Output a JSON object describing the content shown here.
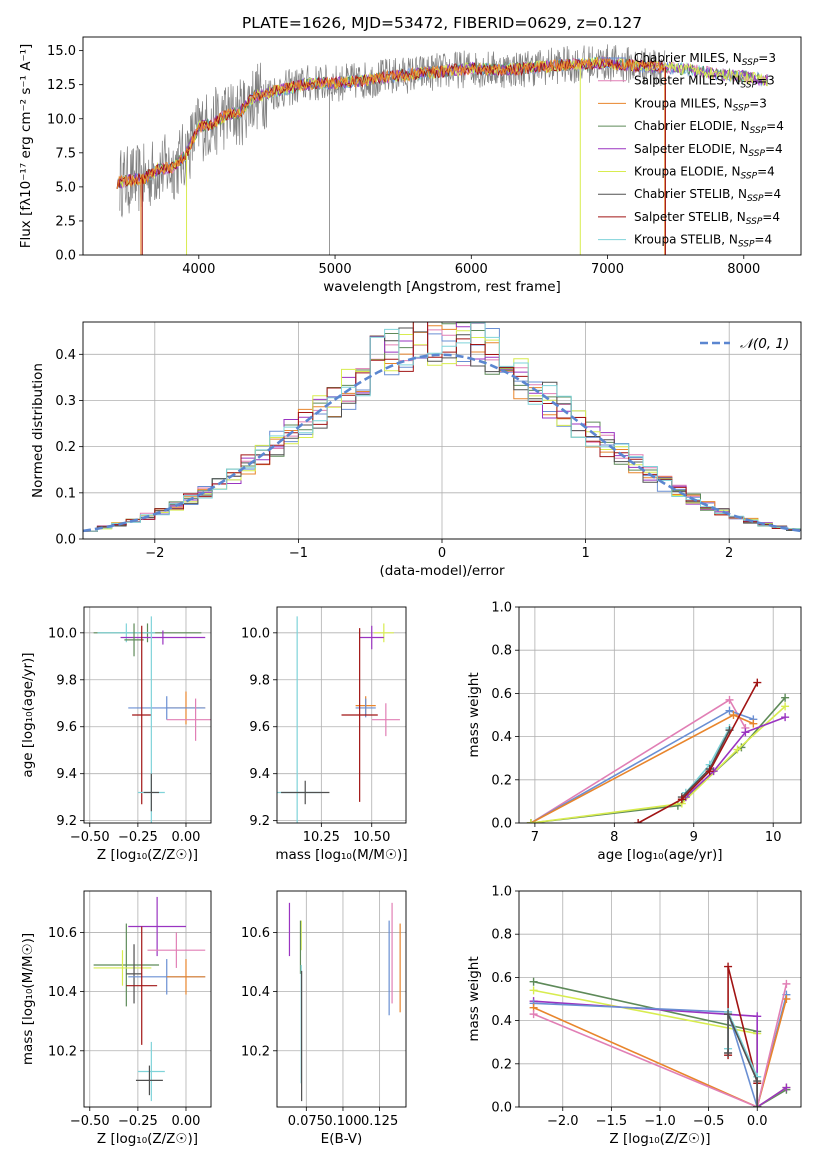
{
  "title": "PLATE=1626, MJD=53472, FIBERID=0629, z=0.127",
  "colors": {
    "chabrier_miles": "#6a8fd3",
    "salpeter_miles": "#e17fb5",
    "kroupa_miles": "#e8852c",
    "chabrier_elodie": "#5e8a59",
    "salpeter_elodie": "#9a34c1",
    "kroupa_elodie": "#d8ec4f",
    "chabrier_stelib": "#505050",
    "salpeter_stelib": "#a11414",
    "kroupa_stelib": "#7fd3d9"
  },
  "chart_data": [
    {
      "type": "line",
      "title": "PLATE=1626, MJD=53472, FIBERID=0629, z=0.127",
      "xlabel": "wavelength [Angstrom, rest frame]",
      "ylabel": "Flux [fλ10⁻¹⁷ erg cm⁻² s⁻¹ A⁻¹]",
      "xlim": [
        3150,
        8420
      ],
      "ylim": [
        0,
        16
      ],
      "xticks": [
        4000,
        5000,
        6000,
        7000,
        8000
      ],
      "yticks": [
        "0.0",
        "2.5",
        "5.0",
        "7.5",
        "10.0",
        "12.5",
        "15.0"
      ],
      "grid": false,
      "legend_position": "right",
      "series": [
        {
          "name": "Chabrier MILES, N_SSP=3",
          "color": "#6a8fd3"
        },
        {
          "name": "Salpeter MILES, N_SSP=3",
          "color": "#e17fb5"
        },
        {
          "name": "Kroupa MILES, N_SSP=3",
          "color": "#e8852c"
        },
        {
          "name": "Chabrier ELODIE, N_SSP=4",
          "color": "#5e8a59"
        },
        {
          "name": "Salpeter ELODIE, N_SSP=4",
          "color": "#9a34c1"
        },
        {
          "name": "Kroupa ELODIE, N_SSP=4",
          "color": "#d8ec4f"
        },
        {
          "name": "Chabrier STELIB, N_SSP=4",
          "color": "#505050"
        },
        {
          "name": "Salpeter STELIB, N_SSP=4",
          "color": "#a11414"
        },
        {
          "name": "Kroupa STELIB, N_SSP=4",
          "color": "#7fd3d9"
        }
      ],
      "continuum": {
        "x": [
          3400,
          3500,
          3600,
          3700,
          3800,
          3900,
          4000,
          4100,
          4200,
          4300,
          4400,
          4600,
          4800,
          5000,
          5200,
          5400,
          5600,
          5800,
          6000,
          6200,
          6400,
          6600,
          6800,
          7000,
          7200,
          7400,
          7600,
          7800,
          8000,
          8200
        ],
        "y": [
          5.3,
          5.5,
          5.6,
          6.3,
          6.4,
          7.3,
          9.4,
          9.6,
          10.3,
          10.4,
          11.6,
          12.1,
          12.6,
          12.6,
          12.8,
          13.1,
          13.3,
          13.5,
          13.7,
          13.6,
          13.7,
          13.9,
          14.0,
          14.1,
          13.9,
          13.8,
          13.6,
          13.3,
          13.1,
          12.8
        ]
      }
    },
    {
      "type": "bar",
      "subtype": "step-histogram",
      "xlabel": "(data-model)/error",
      "ylabel": "Normed distribution",
      "xlim": [
        -2.5,
        2.5
      ],
      "ylim": [
        0,
        0.47
      ],
      "xticks": [
        "−2",
        "−1",
        "0",
        "1",
        "2"
      ],
      "yticks": [
        "0.0",
        "0.1",
        "0.2",
        "0.3",
        "0.4"
      ],
      "grid": true,
      "legend_position": "top-right",
      "legend": "𝒩(0, 1)",
      "bin_width": 0.1,
      "model_curve": "normal(0,1)"
    },
    {
      "type": "scatter",
      "subtype": "error-bars",
      "xlabel": "Z [log₁₀(Z/Z☉)]",
      "ylabel": "age  [log₁₀(age/yr)]",
      "xlim": [
        -0.53,
        0.13
      ],
      "ylim": [
        9.19,
        10.11
      ],
      "xticks": [
        "−0.50",
        "−0.25",
        "0.00"
      ],
      "yticks": [
        "9.2",
        "9.4",
        "9.6",
        "9.8",
        "10.0"
      ],
      "grid": true,
      "points": [
        {
          "x": -0.2,
          "y": 10.0,
          "xerr": 0.28,
          "yerr": 0.04,
          "color": "#5e8a59"
        },
        {
          "x": -0.31,
          "y": 10.0,
          "xerr": 0.15,
          "yerr": 0.04,
          "color": "#7fd3d9"
        },
        {
          "x": -0.12,
          "y": 9.98,
          "xerr": 0.22,
          "yerr": 0.03,
          "color": "#9a34c1"
        },
        {
          "x": -0.27,
          "y": 9.97,
          "xerr": 0.05,
          "yerr": 0.07,
          "color": "#5e8a59"
        },
        {
          "x": 0.0,
          "y": 9.68,
          "xerr": 0.1,
          "yerr": 0.07,
          "color": "#e8852c"
        },
        {
          "x": -0.1,
          "y": 9.68,
          "xerr": 0.2,
          "yerr": 0.05,
          "color": "#6a8fd3"
        },
        {
          "x": 0.05,
          "y": 9.63,
          "xerr": 0.15,
          "yerr": 0.09,
          "color": "#e17fb5"
        },
        {
          "x": -0.23,
          "y": 9.65,
          "xerr": 0.05,
          "yerr": 0.38,
          "color": "#a11414"
        },
        {
          "x": -0.18,
          "y": 9.32,
          "xerr": 0.07,
          "yerr": 0.75,
          "color": "#7fd3d9"
        },
        {
          "x": -0.18,
          "y": 9.32,
          "xerr": 0.04,
          "yerr": 0.08,
          "color": "#505050"
        }
      ]
    },
    {
      "type": "scatter",
      "subtype": "error-bars",
      "xlabel": "mass [log₁₀(M/M☉)]",
      "ylabel": "",
      "xlim": [
        10.03,
        10.67
      ],
      "ylim": [
        9.19,
        10.11
      ],
      "xticks": [
        "10.25",
        "10.50"
      ],
      "yticks": [
        "9.2",
        "9.4",
        "9.6",
        "9.8",
        "10.0"
      ],
      "grid": true,
      "points": [
        {
          "x": 10.56,
          "y": 10.0,
          "xerr": 0.05,
          "yerr": 0.04,
          "color": "#d8ec4f"
        },
        {
          "x": 10.5,
          "y": 9.98,
          "xerr": 0.06,
          "yerr": 0.05,
          "color": "#9a34c1"
        },
        {
          "x": 10.47,
          "y": 9.69,
          "xerr": 0.05,
          "yerr": 0.04,
          "color": "#e8852c"
        },
        {
          "x": 10.47,
          "y": 9.68,
          "xerr": 0.05,
          "yerr": 0.04,
          "color": "#6a8fd3"
        },
        {
          "x": 10.57,
          "y": 9.63,
          "xerr": 0.07,
          "yerr": 0.07,
          "color": "#e17fb5"
        },
        {
          "x": 10.44,
          "y": 9.65,
          "xerr": 0.09,
          "yerr": 0.37,
          "color": "#a11414"
        },
        {
          "x": 10.13,
          "y": 9.32,
          "xerr": 0.12,
          "yerr": 0.75,
          "color": "#7fd3d9"
        },
        {
          "x": 10.17,
          "y": 9.32,
          "xerr": 0.12,
          "yerr": 0.05,
          "color": "#505050"
        }
      ]
    },
    {
      "type": "line",
      "xlabel": "age  [log₁₀(age/yr)]",
      "ylabel": "mass weight",
      "xlim": [
        6.8,
        10.35
      ],
      "ylim": [
        0,
        1
      ],
      "xticks": [
        "7",
        "8",
        "9",
        "10"
      ],
      "yticks": [
        "0.0",
        "0.2",
        "0.4",
        "0.6",
        "0.8",
        "1.0"
      ],
      "grid": true,
      "series": [
        {
          "color": "#e17fb5",
          "x": [
            6.95,
            9.45,
            9.65
          ],
          "y": [
            0.0,
            0.57,
            0.44
          ]
        },
        {
          "color": "#6a8fd3",
          "x": [
            6.95,
            9.45,
            9.75
          ],
          "y": [
            0.0,
            0.52,
            0.48
          ]
        },
        {
          "color": "#e8852c",
          "x": [
            6.95,
            9.5,
            9.75
          ],
          "y": [
            0.0,
            0.5,
            0.46
          ]
        },
        {
          "color": "#5e8a59",
          "x": [
            6.95,
            8.8,
            9.6,
            10.15
          ],
          "y": [
            0.0,
            0.08,
            0.35,
            0.58
          ]
        },
        {
          "color": "#d8ec4f",
          "x": [
            6.95,
            8.85,
            9.55,
            10.15
          ],
          "y": [
            0.0,
            0.09,
            0.34,
            0.54
          ]
        },
        {
          "color": "#9a34c1",
          "x": [
            8.9,
            9.25,
            9.65,
            10.15
          ],
          "y": [
            0.12,
            0.24,
            0.42,
            0.49
          ]
        },
        {
          "color": "#7fd3d9",
          "x": [
            8.9,
            9.2,
            9.45
          ],
          "y": [
            0.14,
            0.27,
            0.44
          ]
        },
        {
          "color": "#505050",
          "x": [
            8.85,
            9.2,
            9.45
          ],
          "y": [
            0.12,
            0.25,
            0.43
          ]
        },
        {
          "color": "#a11414",
          "x": [
            8.3,
            8.85,
            9.2,
            9.8
          ],
          "y": [
            0.0,
            0.11,
            0.24,
            0.65
          ]
        }
      ]
    },
    {
      "type": "scatter",
      "subtype": "error-bars",
      "xlabel": "Z [log₁₀(Z/Z☉)]",
      "ylabel": "mass [log₁₀(M/M☉)]",
      "xlim": [
        -0.53,
        0.13
      ],
      "ylim": [
        10.01,
        10.74
      ],
      "xticks": [
        "−0.50",
        "−0.25",
        "0.00"
      ],
      "yticks": [
        "10.2",
        "10.4",
        "10.6"
      ],
      "grid": true,
      "points": [
        {
          "x": -0.15,
          "y": 10.62,
          "xerr": 0.15,
          "yerr": 0.1,
          "color": "#9a34c1"
        },
        {
          "x": -0.05,
          "y": 10.54,
          "xerr": 0.15,
          "yerr": 0.06,
          "color": "#e17fb5"
        },
        {
          "x": -0.31,
          "y": 10.49,
          "xerr": 0.17,
          "yerr": 0.14,
          "color": "#5e8a59"
        },
        {
          "x": -0.33,
          "y": 10.48,
          "xerr": 0.15,
          "yerr": 0.06,
          "color": "#d8ec4f"
        },
        {
          "x": -0.27,
          "y": 10.46,
          "xerr": 0.04,
          "yerr": 0.1,
          "color": "#505050"
        },
        {
          "x": -0.1,
          "y": 10.45,
          "xerr": 0.2,
          "yerr": 0.06,
          "color": "#6a8fd3"
        },
        {
          "x": 0.0,
          "y": 10.45,
          "xerr": 0.1,
          "yerr": 0.06,
          "color": "#e8852c"
        },
        {
          "x": -0.23,
          "y": 10.42,
          "xerr": 0.08,
          "yerr": 0.2,
          "color": "#a11414"
        },
        {
          "x": -0.18,
          "y": 10.13,
          "xerr": 0.07,
          "yerr": 0.1,
          "color": "#7fd3d9"
        },
        {
          "x": -0.19,
          "y": 10.1,
          "xerr": 0.07,
          "yerr": 0.05,
          "color": "#505050"
        }
      ]
    },
    {
      "type": "scatter",
      "subtype": "error-bars",
      "xlabel": "E(B-V)",
      "ylabel": "",
      "xlim": [
        0.055,
        0.143
      ],
      "ylim": [
        10.01,
        10.74
      ],
      "xticks": [
        "0.075",
        "0.100",
        "0.125"
      ],
      "yticks": [
        "10.2",
        "10.4",
        "10.6"
      ],
      "grid": true,
      "points": [
        {
          "x": 0.0635,
          "y": 10.61,
          "yerr": 0.09,
          "color": "#9a34c1"
        },
        {
          "x": 0.0715,
          "y": 10.59,
          "yerr": 0.05,
          "color": "#d8ec4f"
        },
        {
          "x": 0.071,
          "y": 10.55,
          "yerr": 0.09,
          "color": "#5e8a59"
        },
        {
          "x": 0.0715,
          "y": 10.29,
          "yerr": 0.2,
          "color": "#7fd3d9"
        },
        {
          "x": 0.0718,
          "y": 10.25,
          "yerr": 0.22,
          "color": "#505050"
        },
        {
          "x": 0.1315,
          "y": 10.48,
          "yerr": 0.16,
          "color": "#6a8fd3"
        },
        {
          "x": 0.1335,
          "y": 10.53,
          "yerr": 0.17,
          "color": "#e17fb5"
        },
        {
          "x": 0.139,
          "y": 10.48,
          "yerr": 0.15,
          "color": "#e8852c"
        }
      ]
    },
    {
      "type": "line",
      "xlabel": "Z [log₁₀(Z/Z☉)]",
      "ylabel": "mass weight",
      "xlim": [
        -2.45,
        0.45
      ],
      "ylim": [
        0,
        1
      ],
      "xticks": [
        "−2.0",
        "−1.5",
        "−1.0",
        "−0.5",
        "0.0"
      ],
      "yticks": [
        "0.0",
        "0.2",
        "0.4",
        "0.6",
        "0.8",
        "1.0"
      ],
      "grid": true,
      "series": [
        {
          "color": "#5e8a59",
          "x": [
            -2.3,
            0.0,
            0.0,
            0.3
          ],
          "y": [
            0.58,
            0.35,
            0.0,
            0.08
          ]
        },
        {
          "color": "#d8ec4f",
          "x": [
            -2.3,
            0.0,
            0.0,
            0.3
          ],
          "y": [
            0.54,
            0.34,
            0.0,
            0.09
          ]
        },
        {
          "color": "#9a34c1",
          "x": [
            -2.3,
            0.0,
            0.0,
            0.3
          ],
          "y": [
            0.49,
            0.42,
            0.0,
            0.09
          ]
        },
        {
          "color": "#6a8fd3",
          "x": [
            -2.3,
            -0.3,
            0.0,
            0.3
          ],
          "y": [
            0.48,
            0.44,
            0.0,
            0.52
          ]
        },
        {
          "color": "#e8852c",
          "x": [
            -2.3,
            0.0,
            0.3
          ],
          "y": [
            0.46,
            0.0,
            0.5
          ]
        },
        {
          "color": "#e17fb5",
          "x": [
            -2.3,
            0.0,
            0.3
          ],
          "y": [
            0.43,
            0.0,
            0.57
          ]
        },
        {
          "color": "#a11414",
          "x": [
            -0.3,
            -0.3,
            0.0,
            0.0
          ],
          "y": [
            0.24,
            0.65,
            0.11,
            0.0
          ]
        },
        {
          "color": "#7fd3d9",
          "x": [
            -0.3,
            -0.3,
            0.0,
            0.0
          ],
          "y": [
            0.27,
            0.44,
            0.14,
            0.0
          ]
        },
        {
          "color": "#505050",
          "x": [
            -0.3,
            -0.3,
            0.0,
            0.0
          ],
          "y": [
            0.25,
            0.43,
            0.12,
            0.0
          ]
        }
      ]
    }
  ]
}
